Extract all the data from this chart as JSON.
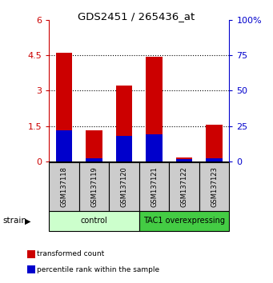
{
  "title": "GDS2451 / 265436_at",
  "samples": [
    "GSM137118",
    "GSM137119",
    "GSM137120",
    "GSM137121",
    "GSM137122",
    "GSM137123"
  ],
  "red_values": [
    4.6,
    1.3,
    3.2,
    4.45,
    0.15,
    1.55
  ],
  "blue_values_pct": [
    22,
    2,
    18,
    19,
    1.5,
    2
  ],
  "ylim_left": [
    0,
    6
  ],
  "ylim_right": [
    0,
    100
  ],
  "yticks_left": [
    0,
    1.5,
    3.0,
    4.5,
    6.0
  ],
  "ytick_labels_left": [
    "0",
    "1.5",
    "3",
    "4.5",
    "6"
  ],
  "yticks_right": [
    0,
    25,
    50,
    75,
    100
  ],
  "ytick_labels_right": [
    "0",
    "25",
    "50",
    "75",
    "100%"
  ],
  "groups": [
    {
      "label": "control",
      "indices": [
        0,
        1,
        2
      ],
      "color": "#ccffcc",
      "border": "#000000"
    },
    {
      "label": "TAC1 overexpressing",
      "indices": [
        3,
        4,
        5
      ],
      "color": "#44cc44",
      "border": "#000000"
    }
  ],
  "bar_width": 0.55,
  "group_label": "strain",
  "red_color": "#cc0000",
  "blue_color": "#0000cc",
  "tick_color_left": "#cc0000",
  "tick_color_right": "#0000cc",
  "sample_box_color": "#cccccc",
  "legend_items": [
    {
      "color": "#cc0000",
      "label": "transformed count"
    },
    {
      "color": "#0000cc",
      "label": "percentile rank within the sample"
    }
  ]
}
